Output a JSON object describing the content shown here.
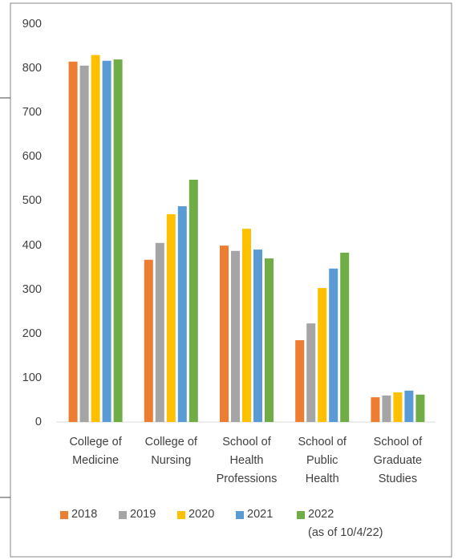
{
  "chart_data": {
    "type": "bar",
    "categories": [
      "College of\nMedicine",
      "College of\nNursing",
      "School of\nHealth\nProfessions",
      "School of\nPublic\nHealth",
      "School of\nGraduate\nStudies"
    ],
    "series": [
      {
        "name": "2018",
        "color": "#ED7D31",
        "values": [
          815,
          367,
          399,
          185,
          56
        ]
      },
      {
        "name": "2019",
        "color": "#A5A5A5",
        "values": [
          806,
          405,
          387,
          223,
          60
        ]
      },
      {
        "name": "2020",
        "color": "#FFC000",
        "values": [
          830,
          470,
          437,
          303,
          67
        ]
      },
      {
        "name": "2021",
        "color": "#5B9BD5",
        "values": [
          817,
          488,
          390,
          347,
          71
        ]
      },
      {
        "name": "2022\n(as of 10/4/22)",
        "color": "#70AD47",
        "values": [
          820,
          548,
          370,
          383,
          62
        ]
      }
    ],
    "ylim": [
      0,
      900
    ],
    "yticks": [
      0,
      100,
      200,
      300,
      400,
      500,
      600,
      700,
      800,
      900
    ],
    "grid": false,
    "legend": "bottom"
  }
}
